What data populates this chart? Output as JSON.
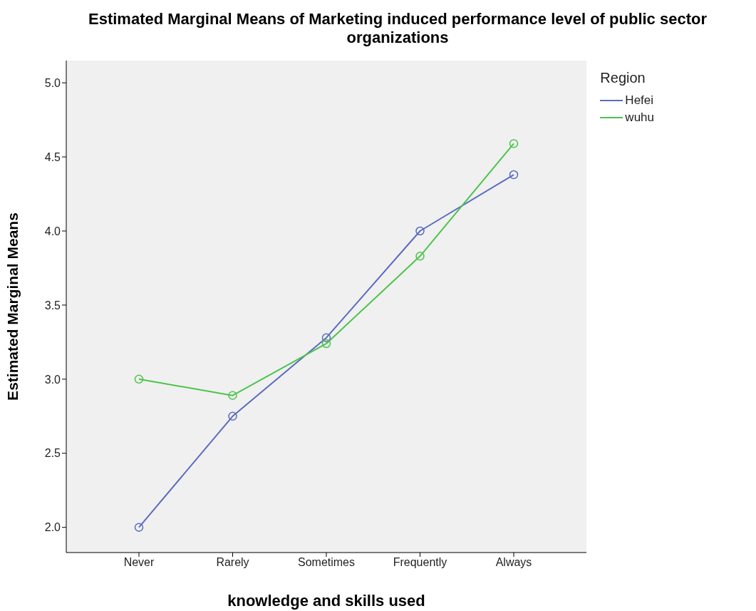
{
  "chart_data": {
    "type": "line",
    "title": "Estimated Marginal Means of Marketing induced performance level of public sector organizations",
    "xlabel": "knowledge and skills used",
    "ylabel": "Estimated Marginal Means",
    "legend_title": "Region",
    "categories": [
      "Never",
      "Rarely",
      "Sometimes",
      "Frequently",
      "Always"
    ],
    "series": [
      {
        "name": "Hefei",
        "color": "#5b6bc0",
        "values": [
          2.0,
          2.75,
          3.28,
          4.0,
          4.38
        ]
      },
      {
        "name": "wuhu",
        "color": "#4cc44c",
        "values": [
          3.0,
          2.89,
          3.24,
          3.83,
          4.59
        ]
      }
    ],
    "ylim": [
      1.83,
      5.15
    ],
    "yticks": [
      {
        "value": 2,
        "label": "2.0"
      },
      {
        "value": 2.5,
        "label": "2.5"
      },
      {
        "value": 3,
        "label": "3.0"
      },
      {
        "value": 3.5,
        "label": "3.5"
      },
      {
        "value": 4,
        "label": "4.0"
      },
      {
        "value": 4.5,
        "label": "4.5"
      },
      {
        "value": 5,
        "label": "5.0"
      }
    ],
    "grid": false,
    "legend": "top right",
    "marker": "circle",
    "line_style": "solid"
  }
}
